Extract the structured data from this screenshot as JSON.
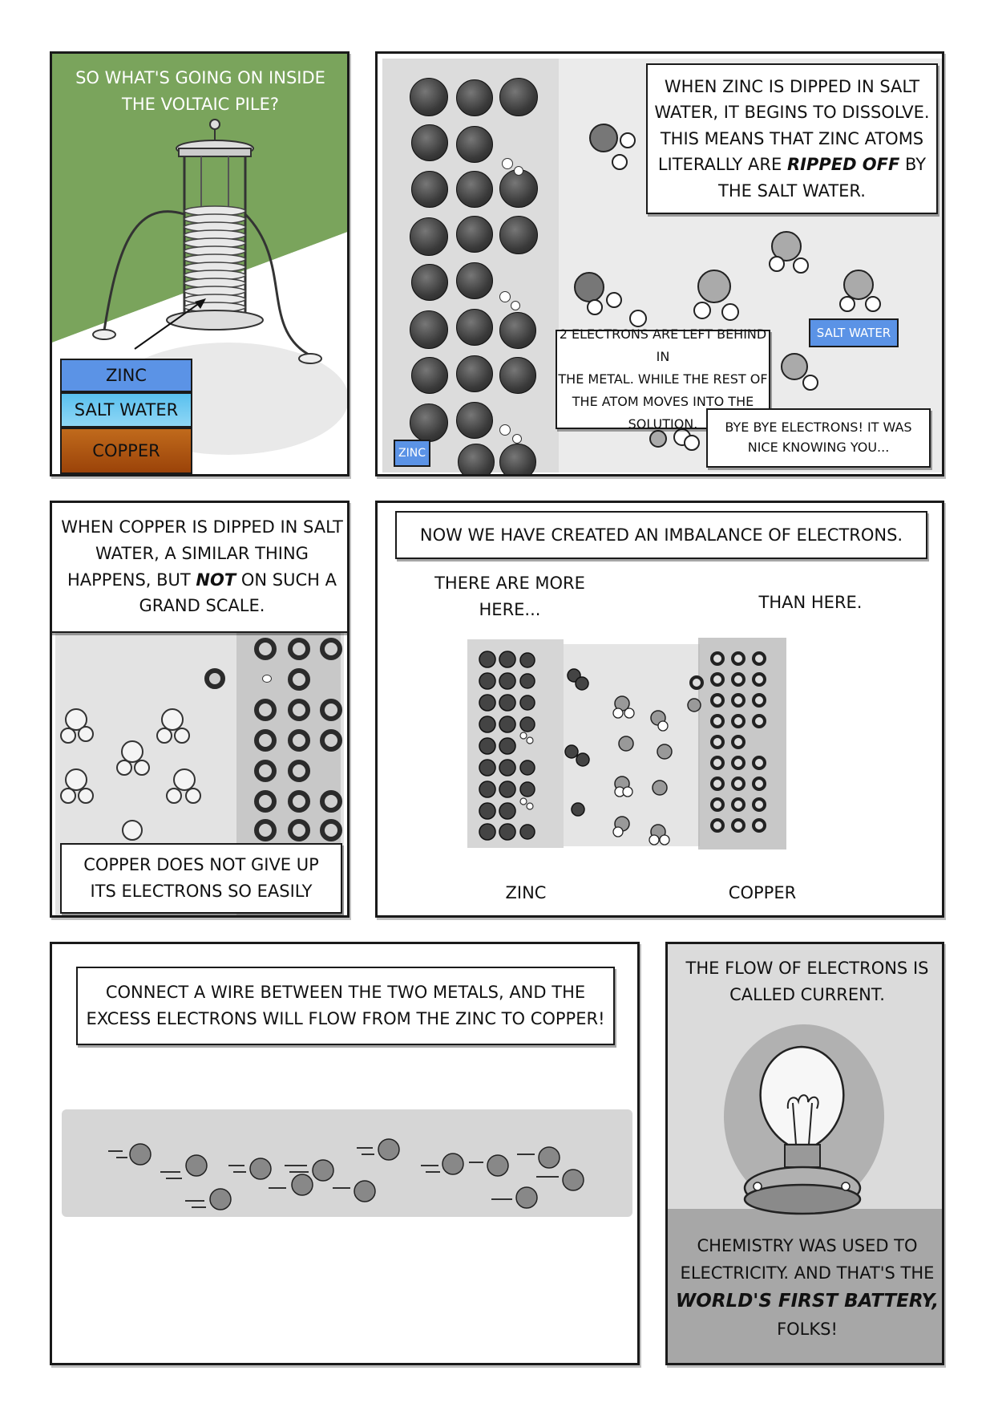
{
  "panel1": {
    "caption": "So what's going on inside the voltaic pile?",
    "legend": [
      "Zinc",
      "Salt water",
      "Copper"
    ],
    "colors": {
      "background": "#7aa45c",
      "zinc": "#5b93e6",
      "salt_water": "#59c0ef",
      "copper": "#b85a12"
    }
  },
  "panel2": {
    "narration_lines": [
      "When zinc is dipped in salt",
      "water, it begins to dissolve.",
      "This means that zinc atoms",
      "literally are",
      "ripped off",
      "by",
      "the salt water."
    ],
    "salt_water_label": "Salt water",
    "zinc_label": "Zinc",
    "electrons_note_lines": [
      "2 electrons are left behind in",
      "the metal. While the rest of",
      "the atom moves into the",
      "solution."
    ],
    "bye_lines": [
      "Bye bye electrons! It was",
      "nice knowing you..."
    ]
  },
  "panel3": {
    "narration_lines": [
      "When copper is dipped in salt",
      "water, a similar thing",
      "happens, but",
      "not",
      "on such a",
      "grand scale."
    ],
    "bottom_lines": [
      "Copper does not give up",
      "its electrons so easily"
    ]
  },
  "panel4": {
    "narration": "Now we have created an imbalance of electrons.",
    "more_here_lines": [
      "There are more",
      "here..."
    ],
    "than_here": "than here.",
    "zinc_label": "Zinc",
    "copper_label": "Copper"
  },
  "panel5": {
    "narration_lines": [
      "Connect a wire between the two metals, and the",
      "excess electrons will flow from the zinc to copper!"
    ]
  },
  "panel6": {
    "top_lines": [
      "The flow of electrons is",
      "called current."
    ],
    "bottom_lines": [
      "Chemistry was used to",
      "electricity. And that's the",
      "world's first battery,",
      "folks!"
    ]
  }
}
